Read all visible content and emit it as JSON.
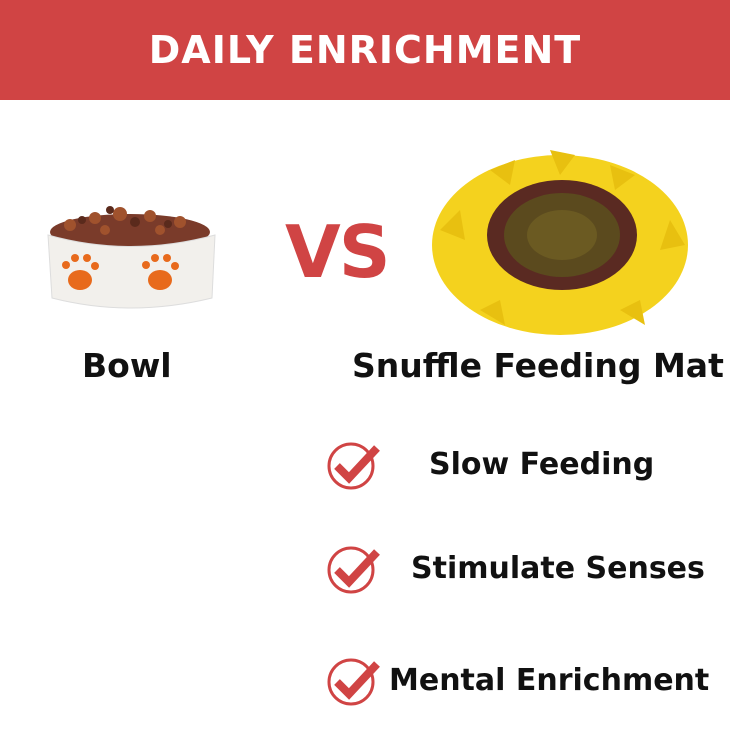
{
  "banner": {
    "title": "DAILY ENRICHMENT",
    "color": "#d04444"
  },
  "comparison": {
    "vs": "VS",
    "left_label": "Bowl",
    "right_label": "Snuffle Feeding Mat"
  },
  "images": {
    "left": "food-bowl-image",
    "right": "sunflower-snuffle-mat-image"
  },
  "benefits": [
    {
      "label": "Slow Feeding",
      "icon": "check-circle-icon"
    },
    {
      "label": "Stimulate Senses",
      "icon": "check-circle-icon"
    },
    {
      "label": "Mental Enrichment",
      "icon": "check-circle-icon"
    }
  ]
}
